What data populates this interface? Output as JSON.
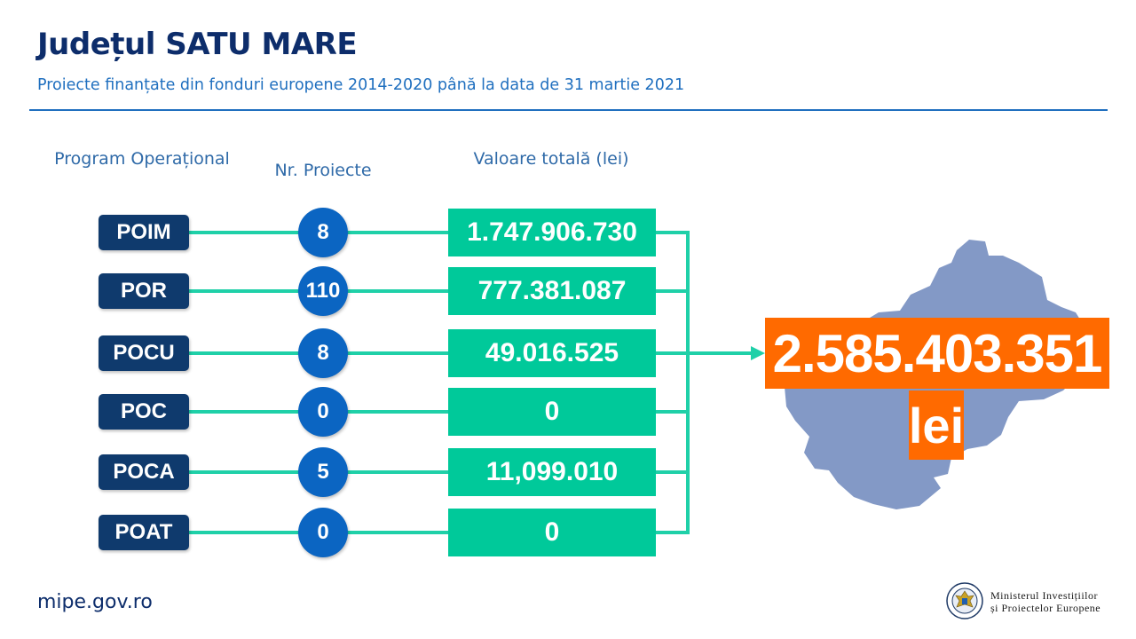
{
  "header": {
    "title": "Județul SATU MARE",
    "subtitle": "Proiecte finanțate din fonduri europene 2014-2020 până la data de 31 martie 2021"
  },
  "columns": {
    "program": "Program Operațional",
    "count": "Nr. Proiecte",
    "value": "Valoare totală (lei)"
  },
  "rows": [
    {
      "program": "POIM",
      "count": "8",
      "value": "1.747.906.730"
    },
    {
      "program": "POR",
      "count": "110",
      "value": "777.381.087"
    },
    {
      "program": "POCU",
      "count": "8",
      "value": "49.016.525"
    },
    {
      "program": "POC",
      "count": "0",
      "value": "0"
    },
    {
      "program": "POCA",
      "count": "5",
      "value": "11,099.010"
    },
    {
      "program": "POAT",
      "count": "0",
      "value": "0"
    }
  ],
  "total": {
    "value": "2.585.403.351",
    "unit": "lei"
  },
  "footer": {
    "website": "mipe.gov.ro",
    "ministry_line1": "Ministerul Investițiilor",
    "ministry_line2": "și Proiectelor Europene",
    "seal_text": "GUVERNUL ROMÂNIEI"
  },
  "colors": {
    "program_box": "#0f3a6d",
    "count_circle": "#0b65c2",
    "value_box": "#00c99a",
    "connector": "#1fd0a8",
    "total_box": "#ff6a00",
    "map_fill": "#8399c6",
    "title": "#0d2d6b",
    "accent": "#1f6fbf"
  },
  "icons": {
    "map": "satu-mare-county-map",
    "logo": "government-seal-icon"
  }
}
